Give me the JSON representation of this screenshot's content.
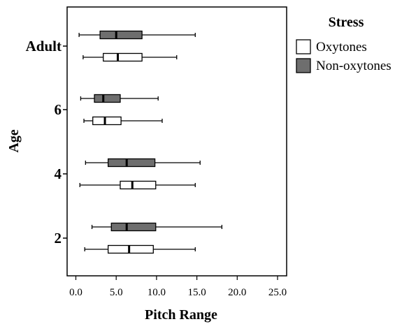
{
  "chart_data": {
    "type": "boxplot",
    "orientation": "horizontal",
    "xlabel": "Pitch Range",
    "ylabel": "Age",
    "xlim": [
      0,
      26.5
    ],
    "x_ticks": [
      "0.0",
      "5.0",
      "10.0",
      "15.0",
      "20.0",
      "25.0"
    ],
    "x_tick_values": [
      0,
      5,
      10,
      15,
      20,
      25
    ],
    "categories": [
      "2",
      "4",
      "6",
      "Adult"
    ],
    "grid": false,
    "legend": {
      "title": "Stress",
      "placement": "right",
      "entries": [
        {
          "name": "Oxytones",
          "color": "#ffffff"
        },
        {
          "name": "Non-oxytones",
          "color": "#6e6e6e"
        }
      ]
    },
    "series": [
      {
        "name": "Oxytones",
        "color": "#ffffff",
        "boxes": [
          {
            "category": "2",
            "min": 1.1,
            "q1": 4.0,
            "median": 6.6,
            "q3": 9.6,
            "max": 14.8
          },
          {
            "category": "4",
            "min": 0.5,
            "q1": 5.5,
            "median": 7.0,
            "q3": 9.9,
            "max": 14.8
          },
          {
            "category": "6",
            "min": 1.0,
            "q1": 2.1,
            "median": 3.6,
            "q3": 5.6,
            "max": 10.7
          },
          {
            "category": "Adult",
            "min": 0.9,
            "q1": 3.4,
            "median": 5.2,
            "q3": 8.2,
            "max": 12.5
          }
        ]
      },
      {
        "name": "Non-oxytones",
        "color": "#6e6e6e",
        "boxes": [
          {
            "category": "2",
            "min": 2.0,
            "q1": 4.4,
            "median": 6.3,
            "q3": 9.9,
            "max": 18.1
          },
          {
            "category": "4",
            "min": 1.2,
            "q1": 4.0,
            "median": 6.3,
            "q3": 9.8,
            "max": 15.4
          },
          {
            "category": "6",
            "min": 0.6,
            "q1": 2.3,
            "median": 3.4,
            "q3": 5.5,
            "max": 10.2
          },
          {
            "category": "Adult",
            "min": 0.4,
            "q1": 3.0,
            "median": 5.0,
            "q3": 8.2,
            "max": 14.8
          }
        ]
      }
    ]
  }
}
